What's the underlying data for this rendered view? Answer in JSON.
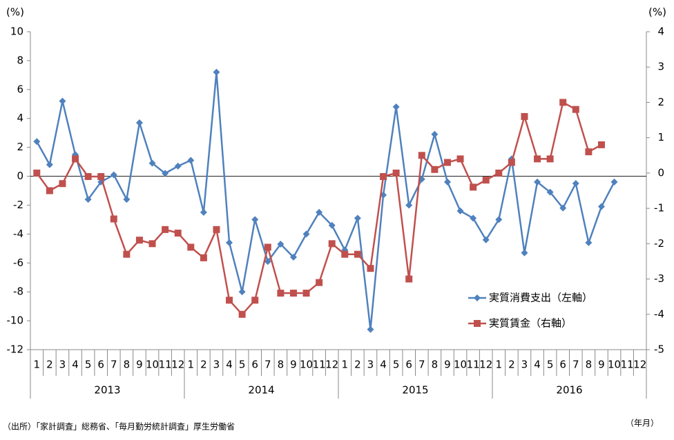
{
  "chart_data": {
    "type": "line",
    "y_unit": "(%)",
    "y2_unit": "(%)",
    "x_unit": "（年月）",
    "source": "（出所）「家計調査」総務省、「毎月勤労統計調査」厚生労働省",
    "categories": [
      "1",
      "2",
      "3",
      "4",
      "5",
      "6",
      "7",
      "8",
      "9",
      "10",
      "11",
      "12",
      "1",
      "2",
      "3",
      "4",
      "5",
      "6",
      "7",
      "8",
      "9",
      "10",
      "11",
      "12",
      "1",
      "2",
      "3",
      "4",
      "5",
      "6",
      "7",
      "8",
      "9",
      "10",
      "11",
      "12",
      "1",
      "2",
      "3",
      "4",
      "5",
      "6",
      "7",
      "8",
      "9",
      "10",
      "11",
      "12"
    ],
    "years": [
      "2013",
      "2014",
      "2015",
      "2016"
    ],
    "ylim": [
      -12,
      10
    ],
    "yticks": [
      -12,
      -10,
      -8,
      -6,
      -4,
      -2,
      0,
      2,
      4,
      6,
      8,
      10
    ],
    "y2lim": [
      -5,
      4
    ],
    "y2ticks": [
      -5,
      -4,
      -3,
      -2,
      -1,
      0,
      1,
      2,
      3,
      4
    ],
    "legend": "right",
    "series": [
      {
        "name": "実質消費支出（左軸）",
        "color": "#4f81bd",
        "marker": "diamond",
        "values": [
          2.4,
          0.8,
          5.2,
          1.5,
          -1.6,
          -0.4,
          0.1,
          -1.6,
          3.7,
          0.9,
          0.2,
          0.7,
          1.1,
          -2.5,
          7.2,
          -4.6,
          -8.0,
          -3.0,
          -5.9,
          -4.7,
          -5.6,
          -4.0,
          -2.5,
          -3.4,
          -5.1,
          -2.9,
          -10.6,
          -1.3,
          4.8,
          -2.0,
          -0.2,
          2.9,
          -0.4,
          -2.4,
          -2.9,
          -4.4,
          -3.0,
          1.2,
          -5.3,
          -0.4,
          -1.1,
          -2.2,
          -0.5,
          -4.6,
          -2.1,
          -0.4,
          null,
          null
        ]
      },
      {
        "name": "実質賃金（右軸）",
        "color": "#c0504d",
        "marker": "square",
        "axis": "y2",
        "values": [
          0.0,
          -0.5,
          -0.3,
          0.4,
          -0.1,
          -0.1,
          -1.3,
          -2.3,
          -1.9,
          -2.0,
          -1.6,
          -1.7,
          -2.1,
          -2.4,
          -1.6,
          -3.6,
          -4.0,
          -3.6,
          -2.1,
          -3.4,
          -3.4,
          -3.4,
          -3.1,
          -2.0,
          -2.3,
          -2.3,
          -2.7,
          -0.1,
          0.0,
          -3.0,
          0.5,
          0.1,
          0.3,
          0.4,
          -0.4,
          -0.2,
          0.0,
          0.3,
          1.6,
          0.4,
          0.4,
          2.0,
          1.8,
          0.6,
          0.8,
          null,
          null,
          null
        ]
      }
    ]
  }
}
